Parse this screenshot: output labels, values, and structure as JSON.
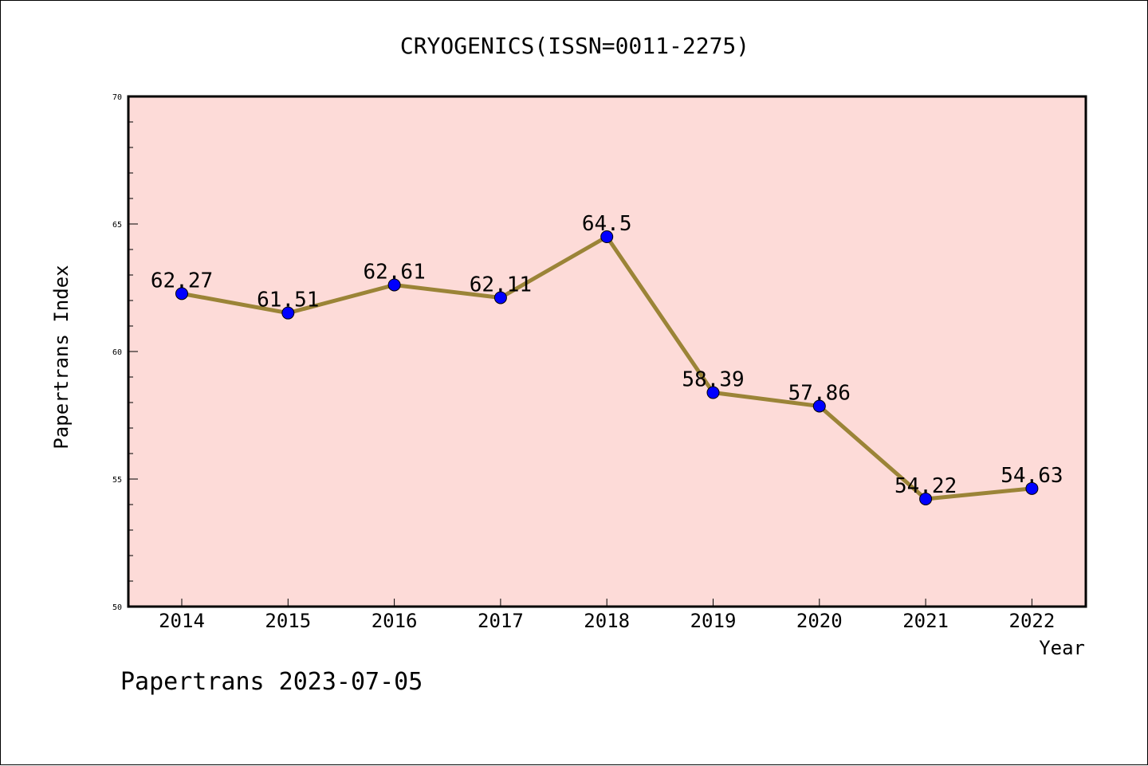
{
  "chart_data": {
    "type": "line",
    "title": "CRYOGENICS(ISSN=0011-2275)",
    "xlabel": "Year",
    "ylabel": "Papertrans Index",
    "categories": [
      "2014",
      "2015",
      "2016",
      "2017",
      "2018",
      "2019",
      "2020",
      "2021",
      "2022"
    ],
    "values": [
      62.27,
      61.51,
      62.61,
      62.11,
      64.5,
      58.39,
      57.86,
      54.22,
      54.63
    ],
    "data_labels": [
      "62.27",
      "61.51",
      "62.61",
      "62.11",
      "64.5",
      "58.39",
      "57.86",
      "54.22",
      "54.63"
    ],
    "ylim": [
      50,
      70
    ],
    "yticks": [
      50,
      55,
      60,
      65,
      70
    ],
    "ytick_labels": [
      "50",
      "55",
      "60",
      "65",
      "70"
    ],
    "grid": false,
    "colors": {
      "line": "#9b8437",
      "marker": "#0000ff",
      "plot_background": "#fddbd8",
      "frame": "#000000"
    }
  },
  "footer": {
    "text": "Papertrans 2023-07-05"
  }
}
